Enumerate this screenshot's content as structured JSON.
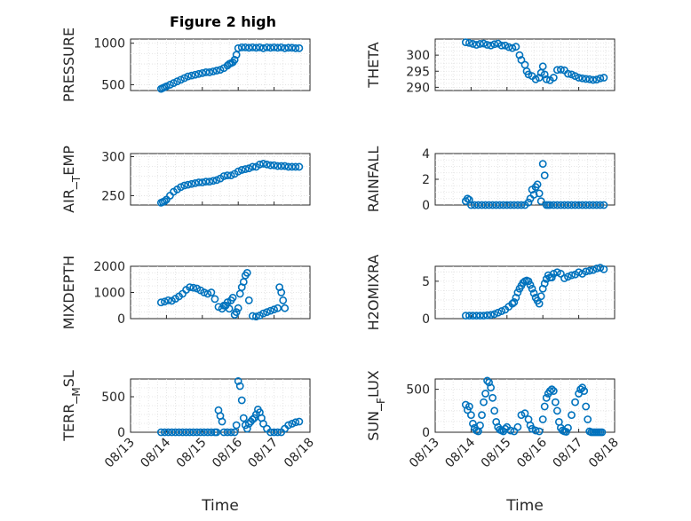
{
  "figure": {
    "title": "Figure 2 high"
  },
  "chart_data": [
    {
      "panel": "pressure",
      "type": "scatter",
      "title": "Figure 2 high",
      "ylabel": "PRESSURE",
      "xlabel": "",
      "xlim": [
        13,
        18
      ],
      "xticks": [
        "08/13",
        "08/14",
        "08/15",
        "08/16",
        "08/17",
        "08/18"
      ],
      "ylim": [
        430,
        1050
      ],
      "yticks": [
        500,
        1000
      ],
      "series": [
        {
          "x": [
            13.85,
            13.9,
            13.95,
            14.0,
            14.1,
            14.2,
            14.3,
            14.4,
            14.5,
            14.6,
            14.7,
            14.8,
            14.9,
            15.0,
            15.1,
            15.2,
            15.3,
            15.4,
            15.5,
            15.6,
            15.7,
            15.75,
            15.8,
            15.85,
            15.9,
            15.95,
            16.0,
            16.1,
            16.2,
            16.3,
            16.4,
            16.5,
            16.6,
            16.7,
            16.8,
            16.9,
            17.0,
            17.1,
            17.2,
            17.3,
            17.4,
            17.5,
            17.6,
            17.7
          ],
          "y": [
            450,
            460,
            470,
            480,
            500,
            520,
            540,
            560,
            580,
            600,
            610,
            620,
            630,
            640,
            650,
            650,
            660,
            670,
            680,
            700,
            730,
            750,
            760,
            770,
            800,
            860,
            940,
            950,
            950,
            945,
            950,
            945,
            950,
            940,
            950,
            945,
            950,
            945,
            950,
            940,
            945,
            945,
            940,
            940
          ]
        }
      ]
    },
    {
      "panel": "theta",
      "type": "scatter",
      "ylabel": "THETA",
      "xlabel": "",
      "xlim": [
        13,
        18
      ],
      "xticks": [
        "08/13",
        "08/14",
        "08/15",
        "08/16",
        "08/17",
        "08/18"
      ],
      "ylim": [
        289,
        305
      ],
      "yticks": [
        290,
        295,
        300
      ],
      "series": [
        {
          "x": [
            13.85,
            13.95,
            14.05,
            14.15,
            14.25,
            14.35,
            14.45,
            14.55,
            14.65,
            14.75,
            14.85,
            14.95,
            15.05,
            15.15,
            15.25,
            15.35,
            15.4,
            15.5,
            15.55,
            15.6,
            15.7,
            15.8,
            15.9,
            15.95,
            16.0,
            16.05,
            16.1,
            16.2,
            16.3,
            16.4,
            16.5,
            16.6,
            16.7,
            16.8,
            16.9,
            17.0,
            17.1,
            17.2,
            17.3,
            17.4,
            17.5,
            17.6,
            17.7
          ],
          "y": [
            304,
            303.8,
            303.5,
            303.2,
            303.5,
            303.6,
            303.2,
            303,
            303.4,
            303.6,
            303,
            303,
            302.5,
            302.2,
            302.6,
            300,
            298.5,
            297,
            295,
            294,
            293.5,
            292.5,
            293,
            294.5,
            296.5,
            294,
            292.5,
            292.2,
            293,
            295.4,
            295.5,
            295.3,
            294.2,
            294,
            293.5,
            293,
            292.8,
            292.6,
            292.5,
            292.3,
            292.4,
            292.8,
            293
          ]
        }
      ]
    },
    {
      "panel": "air-temp",
      "type": "scatter",
      "ylabel": "AIR_TEMP",
      "xlabel": "",
      "xlim": [
        13,
        18
      ],
      "xticks": [
        "08/13",
        "08/14",
        "08/15",
        "08/16",
        "08/17",
        "08/18"
      ],
      "ylim": [
        238,
        304
      ],
      "yticks": [
        250,
        300
      ],
      "series": [
        {
          "x": [
            13.85,
            13.9,
            13.95,
            14.0,
            14.1,
            14.2,
            14.3,
            14.4,
            14.5,
            14.6,
            14.7,
            14.8,
            14.9,
            15.0,
            15.1,
            15.2,
            15.3,
            15.4,
            15.5,
            15.6,
            15.7,
            15.8,
            15.9,
            16.0,
            16.1,
            16.2,
            16.3,
            16.4,
            16.5,
            16.6,
            16.7,
            16.8,
            16.9,
            17.0,
            17.1,
            17.2,
            17.3,
            17.4,
            17.5,
            17.6,
            17.7
          ],
          "y": [
            241,
            242,
            243,
            245,
            250,
            255,
            258,
            261,
            263,
            264,
            265,
            266,
            267,
            267,
            268,
            268,
            269,
            270,
            272,
            275,
            276,
            276,
            278,
            281,
            283,
            284,
            285,
            287,
            287,
            290,
            291,
            290,
            289,
            289,
            288,
            288,
            288,
            287,
            287,
            287,
            287
          ]
        }
      ]
    },
    {
      "panel": "rainfall",
      "type": "scatter",
      "ylabel": "RAINFALL",
      "xlabel": "",
      "xlim": [
        13,
        18
      ],
      "xticks": [
        "08/13",
        "08/14",
        "08/15",
        "08/16",
        "08/17",
        "08/18"
      ],
      "ylim": [
        0,
        4
      ],
      "yticks": [
        0,
        2,
        4
      ],
      "series": [
        {
          "x": [
            13.85,
            13.9,
            13.95,
            14.0,
            14.1,
            14.2,
            14.3,
            14.4,
            14.5,
            14.6,
            14.7,
            14.8,
            14.9,
            15.0,
            15.1,
            15.2,
            15.3,
            15.4,
            15.5,
            15.6,
            15.65,
            15.7,
            15.75,
            15.8,
            15.85,
            15.9,
            15.95,
            16.0,
            16.05,
            16.1,
            16.15,
            16.2,
            16.3,
            16.4,
            16.5,
            16.6,
            16.7,
            16.8,
            16.9,
            17.0,
            17.1,
            17.2,
            17.3,
            17.4,
            17.5,
            17.6,
            17.7
          ],
          "y": [
            0.3,
            0.5,
            0.4,
            0,
            0,
            0,
            0,
            0,
            0,
            0,
            0,
            0,
            0,
            0,
            0,
            0,
            0,
            0,
            0,
            0.2,
            0.5,
            1.2,
            0.8,
            1.4,
            1.6,
            0.9,
            0.3,
            3.2,
            2.3,
            0,
            0,
            0,
            0,
            0,
            0,
            0,
            0,
            0,
            0,
            0,
            0,
            0,
            0,
            0,
            0,
            0,
            0
          ]
        }
      ]
    },
    {
      "panel": "mixdepth",
      "type": "scatter",
      "ylabel": "MIXDEPTH",
      "xlabel": "",
      "xlim": [
        13,
        18
      ],
      "xticks": [
        "08/13",
        "08/14",
        "08/15",
        "08/16",
        "08/17",
        "08/18"
      ],
      "ylim": [
        0,
        2000
      ],
      "yticks": [
        0,
        1000,
        2000
      ],
      "series": [
        {
          "x": [
            13.85,
            13.95,
            14.05,
            14.15,
            14.25,
            14.35,
            14.45,
            14.55,
            14.65,
            14.75,
            14.85,
            14.95,
            15.05,
            15.15,
            15.25,
            15.35,
            15.45,
            15.55,
            15.6,
            15.65,
            15.7,
            15.75,
            15.8,
            15.85,
            15.9,
            15.95,
            16.0,
            16.05,
            16.1,
            16.15,
            16.2,
            16.25,
            16.3,
            16.4,
            16.5,
            16.6,
            16.7,
            16.8,
            16.9,
            17.0,
            17.1,
            17.15,
            17.2,
            17.25,
            17.3
          ],
          "y": [
            620,
            650,
            700,
            680,
            760,
            850,
            950,
            1100,
            1200,
            1180,
            1150,
            1080,
            1000,
            950,
            1000,
            750,
            450,
            380,
            500,
            500,
            620,
            380,
            700,
            800,
            150,
            250,
            400,
            950,
            1200,
            1400,
            1650,
            1750,
            700,
            100,
            80,
            120,
            200,
            250,
            300,
            350,
            400,
            1200,
            1000,
            700,
            400
          ]
        }
      ]
    },
    {
      "panel": "h2omixra",
      "type": "scatter",
      "ylabel": "H2OMIXRA",
      "xlabel": "",
      "xlim": [
        13,
        18
      ],
      "xticks": [
        "08/13",
        "08/14",
        "08/15",
        "08/16",
        "08/17",
        "08/18"
      ],
      "ylim": [
        0,
        7
      ],
      "yticks": [
        0,
        5
      ],
      "series": [
        {
          "x": [
            13.85,
            13.95,
            14.05,
            14.15,
            14.25,
            14.35,
            14.45,
            14.55,
            14.65,
            14.75,
            14.85,
            14.95,
            15.05,
            15.15,
            15.2,
            15.25,
            15.3,
            15.35,
            15.4,
            15.45,
            15.5,
            15.55,
            15.6,
            15.65,
            15.7,
            15.75,
            15.8,
            15.85,
            15.9,
            15.95,
            16.0,
            16.05,
            16.1,
            16.15,
            16.2,
            16.25,
            16.3,
            16.4,
            16.5,
            16.6,
            16.7,
            16.8,
            16.9,
            17.0,
            17.1,
            17.2,
            17.3,
            17.4,
            17.5,
            17.6,
            17.7
          ],
          "y": [
            0.4,
            0.4,
            0.4,
            0.4,
            0.4,
            0.4,
            0.45,
            0.5,
            0.6,
            0.8,
            1.0,
            1.2,
            1.6,
            2.0,
            2.2,
            2.8,
            3.5,
            4.0,
            4.4,
            4.8,
            5.0,
            5.1,
            5.0,
            4.5,
            4.0,
            3.4,
            2.8,
            2.4,
            2.0,
            3.0,
            4.0,
            4.7,
            5.3,
            5.8,
            5.5,
            5.5,
            6.0,
            6.2,
            6.0,
            5.4,
            5.6,
            5.8,
            5.9,
            6.2,
            6.0,
            6.3,
            6.4,
            6.5,
            6.7,
            6.8,
            6.6
          ]
        }
      ]
    },
    {
      "panel": "terr-msl",
      "type": "scatter",
      "ylabel": "TERR_MSL",
      "xlabel": "Time",
      "xlim": [
        13,
        18
      ],
      "xticks": [
        "08/13",
        "08/14",
        "08/15",
        "08/16",
        "08/17",
        "08/18"
      ],
      "ylim": [
        0,
        750
      ],
      "yticks": [
        0,
        500
      ],
      "series": [
        {
          "x": [
            13.85,
            13.95,
            14.05,
            14.15,
            14.25,
            14.35,
            14.45,
            14.55,
            14.65,
            14.75,
            14.85,
            14.95,
            15.05,
            15.15,
            15.25,
            15.35,
            15.4,
            15.45,
            15.5,
            15.55,
            15.6,
            15.7,
            15.8,
            15.9,
            15.95,
            16.0,
            16.05,
            16.1,
            16.15,
            16.2,
            16.25,
            16.3,
            16.35,
            16.4,
            16.45,
            16.5,
            16.55,
            16.6,
            16.65,
            16.7,
            16.8,
            16.9,
            17.0,
            17.1,
            17.2,
            17.3,
            17.4,
            17.5,
            17.6,
            17.7
          ],
          "y": [
            0,
            0,
            0,
            0,
            0,
            0,
            0,
            0,
            0,
            0,
            0,
            0,
            0,
            0,
            0,
            0,
            0,
            310,
            230,
            150,
            0,
            0,
            0,
            0,
            100,
            720,
            650,
            450,
            200,
            100,
            50,
            120,
            150,
            180,
            200,
            250,
            320,
            280,
            200,
            120,
            50,
            0,
            0,
            0,
            0,
            50,
            100,
            120,
            140,
            150
          ]
        }
      ]
    },
    {
      "panel": "sunflux",
      "type": "scatter",
      "ylabel": "SUN_FLUX",
      "xlabel": "Time",
      "xlim": [
        13,
        18
      ],
      "xticks": [
        "08/13",
        "08/14",
        "08/15",
        "08/16",
        "08/17",
        "08/18"
      ],
      "ylim": [
        0,
        620
      ],
      "yticks": [
        0,
        500
      ],
      "series": [
        {
          "x": [
            13.85,
            13.9,
            13.95,
            14.0,
            14.05,
            14.1,
            14.15,
            14.2,
            14.25,
            14.3,
            14.35,
            14.4,
            14.45,
            14.5,
            14.55,
            14.6,
            14.65,
            14.7,
            14.75,
            14.8,
            14.85,
            14.9,
            14.95,
            15.0,
            15.1,
            15.2,
            15.3,
            15.4,
            15.5,
            15.6,
            15.65,
            15.7,
            15.8,
            15.9,
            16.0,
            16.05,
            16.1,
            16.15,
            16.2,
            16.25,
            16.3,
            16.35,
            16.4,
            16.45,
            16.5,
            16.55,
            16.6,
            16.65,
            16.7,
            16.8,
            16.9,
            17.0,
            17.05,
            17.1,
            17.15,
            17.2,
            17.25,
            17.3,
            17.35,
            17.4,
            17.45,
            17.5,
            17.55,
            17.6,
            17.65
          ],
          "y": [
            320,
            260,
            300,
            200,
            100,
            50,
            20,
            10,
            80,
            200,
            350,
            450,
            600,
            580,
            520,
            400,
            250,
            120,
            60,
            30,
            20,
            10,
            40,
            60,
            20,
            10,
            60,
            200,
            220,
            150,
            80,
            40,
            20,
            10,
            150,
            300,
            400,
            450,
            480,
            500,
            480,
            350,
            250,
            120,
            50,
            20,
            10,
            5,
            50,
            200,
            350,
            450,
            500,
            520,
            480,
            300,
            150,
            10,
            0,
            0,
            0,
            0,
            0,
            0,
            0
          ]
        }
      ]
    }
  ]
}
